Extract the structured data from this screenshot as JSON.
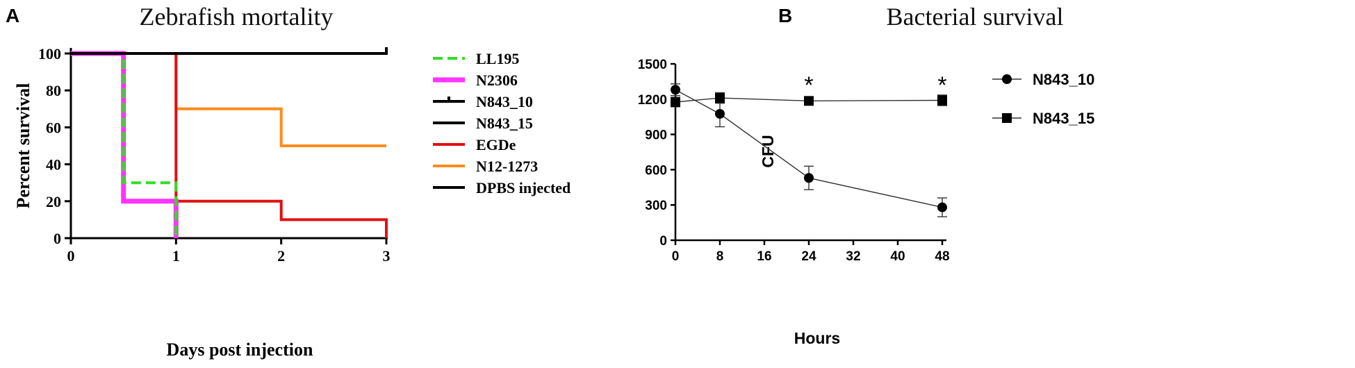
{
  "panels": {
    "a_letter": "A",
    "b_letter": "B"
  },
  "chart_data": [
    {
      "type": "line",
      "subtype": "kaplan-meier step",
      "title": "Zebrafish mortality",
      "xlabel": "Days post injection",
      "ylabel": "Percent survival",
      "xlim": [
        0,
        3
      ],
      "ylim": [
        0,
        100
      ],
      "x_ticks": [
        "0",
        "1",
        "2",
        "3"
      ],
      "y_ticks": [
        "0",
        "20",
        "40",
        "60",
        "80",
        "100"
      ],
      "legend_position": "right",
      "series": [
        {
          "name": "LL195",
          "color": "#33dd22",
          "style": "dashed",
          "steps": [
            [
              0,
              100
            ],
            [
              0.5,
              100
            ],
            [
              0.5,
              30
            ],
            [
              1,
              30
            ],
            [
              1,
              0
            ]
          ]
        },
        {
          "name": "N2306",
          "color": "#ff33ff",
          "style": "thick",
          "steps": [
            [
              0,
              100
            ],
            [
              0.5,
              100
            ],
            [
              0.5,
              20
            ],
            [
              1,
              20
            ],
            [
              1,
              0
            ]
          ]
        },
        {
          "name": "N843_10",
          "color": "#000000",
          "style": "solid-tick",
          "steps": [
            [
              0,
              100
            ],
            [
              3,
              100
            ]
          ]
        },
        {
          "name": "N843_15",
          "color": "#000000",
          "style": "solid",
          "steps": [
            [
              0,
              100
            ],
            [
              3,
              100
            ]
          ]
        },
        {
          "name": "EGDe",
          "color": "#e01010",
          "style": "solid",
          "steps": [
            [
              0,
              100
            ],
            [
              1,
              100
            ],
            [
              1,
              20
            ],
            [
              2,
              20
            ],
            [
              2,
              10
            ],
            [
              3,
              10
            ],
            [
              3,
              0
            ]
          ]
        },
        {
          "name": "N12-1273",
          "color": "#ff8c1a",
          "style": "solid",
          "steps": [
            [
              0,
              100
            ],
            [
              1,
              100
            ],
            [
              1,
              70
            ],
            [
              2,
              70
            ],
            [
              2,
              50
            ],
            [
              3,
              50
            ]
          ]
        },
        {
          "name": "DPBS injected",
          "color": "#000000",
          "style": "solid",
          "steps": [
            [
              0,
              100
            ],
            [
              3,
              100
            ]
          ]
        }
      ]
    },
    {
      "type": "line",
      "title": "Bacterial survival",
      "xlabel": "Hours",
      "ylabel": "CFU",
      "xlim": [
        0,
        48
      ],
      "ylim": [
        0,
        1500
      ],
      "x_ticks": [
        "0",
        "8",
        "16",
        "24",
        "32",
        "40",
        "48"
      ],
      "y_ticks": [
        "0",
        "300",
        "600",
        "900",
        "1200",
        "1500"
      ],
      "legend_position": "right",
      "annotations": [
        {
          "x": 24,
          "y": 1300,
          "text": "*"
        },
        {
          "x": 48,
          "y": 1300,
          "text": "*"
        }
      ],
      "series": [
        {
          "name": "N843_10",
          "marker": "circle",
          "x": [
            0,
            8,
            24,
            48
          ],
          "y": [
            1280,
            1075,
            530,
            280
          ],
          "err": [
            50,
            110,
            100,
            80
          ]
        },
        {
          "name": "N843_15",
          "marker": "square",
          "x": [
            0,
            8,
            24,
            48
          ],
          "y": [
            1175,
            1210,
            1185,
            1190
          ],
          "err": [
            40,
            45,
            25,
            45
          ]
        }
      ]
    }
  ]
}
